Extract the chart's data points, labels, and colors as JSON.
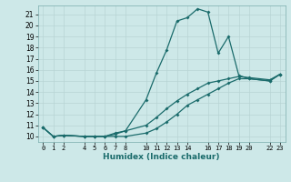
{
  "xlabel": "Humidex (Indice chaleur)",
  "bg_color": "#cde8e8",
  "line_color": "#1a6b6b",
  "grid_color": "#b8d4d4",
  "line1_x": [
    0,
    1,
    2,
    4,
    5,
    6,
    7,
    8,
    10,
    11,
    12,
    13,
    14,
    15,
    16,
    17,
    18,
    19,
    20,
    22,
    23
  ],
  "line1_y": [
    10.8,
    10.0,
    10.1,
    10.0,
    10.0,
    10.0,
    10.3,
    10.5,
    13.3,
    15.7,
    17.8,
    20.4,
    20.7,
    21.5,
    21.2,
    17.5,
    19.0,
    15.5,
    15.2,
    15.0,
    15.6
  ],
  "line2_x": [
    0,
    1,
    2,
    4,
    5,
    6,
    7,
    8,
    10,
    11,
    12,
    13,
    14,
    15,
    16,
    17,
    18,
    19,
    20,
    22,
    23
  ],
  "line2_y": [
    10.8,
    10.0,
    10.1,
    10.0,
    10.0,
    10.0,
    10.0,
    10.0,
    10.3,
    10.7,
    11.3,
    12.0,
    12.8,
    13.3,
    13.8,
    14.3,
    14.8,
    15.2,
    15.2,
    15.0,
    15.6
  ],
  "line3_x": [
    0,
    1,
    2,
    4,
    5,
    6,
    7,
    8,
    10,
    11,
    12,
    13,
    14,
    15,
    16,
    17,
    18,
    19,
    20,
    22,
    23
  ],
  "line3_y": [
    10.8,
    10.0,
    10.1,
    10.0,
    10.0,
    10.0,
    10.2,
    10.5,
    11.0,
    11.7,
    12.5,
    13.2,
    13.8,
    14.3,
    14.8,
    15.0,
    15.2,
    15.4,
    15.3,
    15.1,
    15.6
  ],
  "xlim": [
    -0.5,
    23.5
  ],
  "ylim": [
    9.5,
    21.8
  ],
  "yticks": [
    10,
    11,
    12,
    13,
    14,
    15,
    16,
    17,
    18,
    19,
    20,
    21
  ],
  "xticks": [
    0,
    1,
    2,
    4,
    5,
    6,
    7,
    8,
    10,
    11,
    12,
    13,
    14,
    16,
    17,
    18,
    19,
    20,
    22,
    23
  ],
  "xtick_labels": [
    "0",
    "1",
    "2",
    "4",
    "5",
    "6",
    "7",
    "8",
    "10",
    "11",
    "12",
    "13",
    "14",
    "16",
    "17",
    "18",
    "19",
    "20",
    "22",
    "23"
  ]
}
